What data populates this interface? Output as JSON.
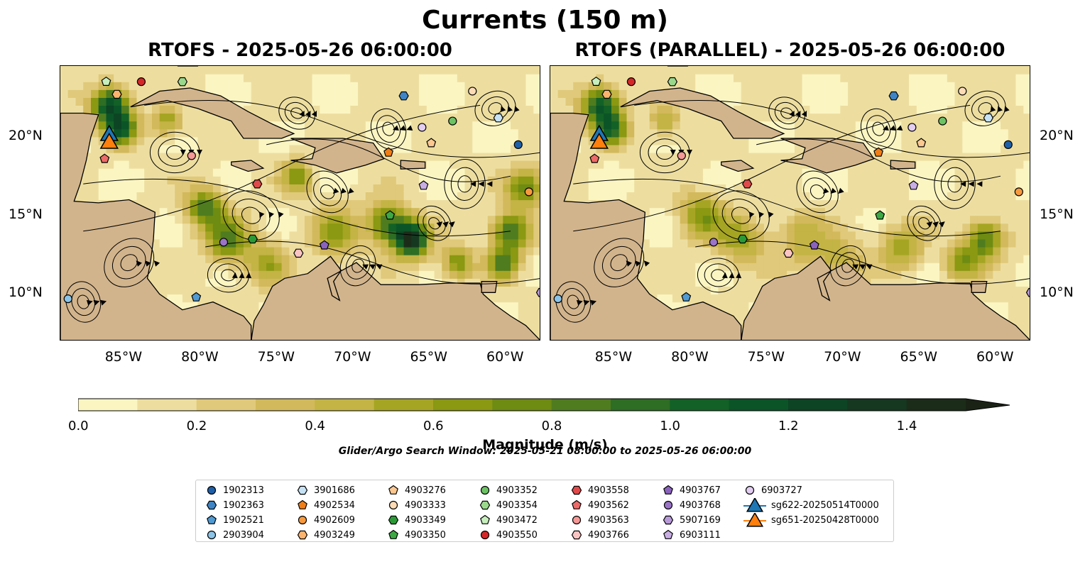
{
  "figure": {
    "title": "Currents (150 m)",
    "search_window": "Glider/Argo Search Window: 2025-05-21 08:00:00 to 2025-05-26 06:00:00"
  },
  "chart_data": [
    {
      "type": "heatmap",
      "title": "RTOFS - 2025-05-26 06:00:00",
      "x_ticks": [
        "85°W",
        "80°W",
        "75°W",
        "70°W",
        "65°W",
        "60°W"
      ],
      "y_ticks": [
        "20°N",
        "15°N",
        "10°N"
      ],
      "xlim": [
        -89.5,
        -58
      ],
      "ylim": [
        7,
        24.5
      ]
    },
    {
      "type": "heatmap",
      "title": "RTOFS (PARALLEL) - 2025-05-26 06:00:00",
      "x_ticks": [
        "85°W",
        "80°W",
        "75°W",
        "70°W",
        "65°W",
        "60°W"
      ],
      "y_ticks": [
        "20°N",
        "15°N",
        "10°N"
      ],
      "xlim": [
        -89.5,
        -58
      ],
      "ylim": [
        7,
        24.5
      ]
    }
  ],
  "colorbar": {
    "label": "Magnitude (m/s)",
    "ticks": [
      "0.0",
      "0.2",
      "0.4",
      "0.6",
      "0.8",
      "1.0",
      "1.2",
      "1.4"
    ],
    "range": [
      0,
      1.5
    ],
    "colors": [
      "#fbf5c2",
      "#eddea0",
      "#e0c97a",
      "#d2b95b",
      "#c3b445",
      "#a6a523",
      "#8a9812",
      "#6e8b12",
      "#4f7c1f",
      "#2e6d24",
      "#136126",
      "#0b5428",
      "#0c4424",
      "#163820",
      "#1b2d19",
      "#1a2216"
    ]
  },
  "legend": {
    "items": [
      {
        "label": "1902313",
        "shape": "circle",
        "color": "#1f5fa8"
      },
      {
        "label": "1902363",
        "shape": "hexagon",
        "color": "#3f84c4"
      },
      {
        "label": "1902521",
        "shape": "pentagon",
        "color": "#4f9ad3"
      },
      {
        "label": "2903904",
        "shape": "circle",
        "color": "#8cc4e8"
      },
      {
        "label": "3901686",
        "shape": "hexagon",
        "color": "#c6e2f4"
      },
      {
        "label": "4902534",
        "shape": "pentagon",
        "color": "#f07e16"
      },
      {
        "label": "4902609",
        "shape": "circle",
        "color": "#f79a3e"
      },
      {
        "label": "4903249",
        "shape": "hexagon",
        "color": "#fbb36e"
      },
      {
        "label": "4903276",
        "shape": "pentagon",
        "color": "#fcc891"
      },
      {
        "label": "4903333",
        "shape": "circle",
        "color": "#fddbb5"
      },
      {
        "label": "4903349",
        "shape": "hexagon",
        "color": "#2b9a36"
      },
      {
        "label": "4903350",
        "shape": "pentagon",
        "color": "#3da844"
      },
      {
        "label": "4903352",
        "shape": "circle",
        "color": "#6cc264"
      },
      {
        "label": "4903354",
        "shape": "hexagon",
        "color": "#9ad98c"
      },
      {
        "label": "4903472",
        "shape": "pentagon",
        "color": "#c7efbd"
      },
      {
        "label": "4903550",
        "shape": "circle",
        "color": "#d62728"
      },
      {
        "label": "4903558",
        "shape": "hexagon",
        "color": "#e0494a"
      },
      {
        "label": "4903562",
        "shape": "pentagon",
        "color": "#ec6a68"
      },
      {
        "label": "4903563",
        "shape": "circle",
        "color": "#f59896"
      },
      {
        "label": "4903766",
        "shape": "hexagon",
        "color": "#fac4c3"
      },
      {
        "label": "4903767",
        "shape": "pentagon",
        "color": "#8a63bd"
      },
      {
        "label": "4903768",
        "shape": "circle",
        "color": "#9b74c8"
      },
      {
        "label": "5907169",
        "shape": "hexagon",
        "color": "#b89ad8"
      },
      {
        "label": "6903111",
        "shape": "pentagon",
        "color": "#c8aee3"
      },
      {
        "label": "6903727",
        "shape": "circle",
        "color": "#e3cdf1"
      },
      {
        "label": "sg622-20250514T0000",
        "shape": "triangle",
        "color": "#1f77b4"
      },
      {
        "label": "sg651-20250428T0000",
        "shape": "triangle",
        "color": "#ff7f0e"
      }
    ]
  },
  "platforms": [
    {
      "label": "4903472",
      "lon": -86.5,
      "lat": 23.5
    },
    {
      "label": "4903550",
      "lon": -84.2,
      "lat": 23.5
    },
    {
      "label": "4903354",
      "lon": -81.5,
      "lat": 23.5
    },
    {
      "label": "4903249",
      "lon": -85.8,
      "lat": 22.7
    },
    {
      "label": "1902363",
      "lon": -67.0,
      "lat": 22.6
    },
    {
      "label": "4903333",
      "lon": -62.5,
      "lat": 22.9
    },
    {
      "label": "4903352",
      "lon": -63.8,
      "lat": 21.0
    },
    {
      "label": "3901686",
      "lon": -60.8,
      "lat": 21.2
    },
    {
      "label": "6903727",
      "lon": -65.8,
      "lat": 20.6
    },
    {
      "label": "4903276",
      "lon": -65.2,
      "lat": 19.6
    },
    {
      "label": "4902534",
      "lon": -68.0,
      "lat": 19.0
    },
    {
      "label": "1902313",
      "lon": -59.5,
      "lat": 19.5
    },
    {
      "label": "4903563",
      "lon": -80.9,
      "lat": 18.8
    },
    {
      "label": "4903562",
      "lon": -86.6,
      "lat": 18.6
    },
    {
      "label": "4903558",
      "lon": -76.6,
      "lat": 17.0
    },
    {
      "label": "6903111",
      "lon": -65.7,
      "lat": 16.9
    },
    {
      "label": "4902609",
      "lon": -58.8,
      "lat": 16.5
    },
    {
      "label": "4903350",
      "lon": -67.9,
      "lat": 15.0
    },
    {
      "label": "4903349",
      "lon": -76.9,
      "lat": 13.5
    },
    {
      "label": "4903768",
      "lon": -78.8,
      "lat": 13.3
    },
    {
      "label": "4903767",
      "lon": -72.2,
      "lat": 13.1
    },
    {
      "label": "4903766",
      "lon": -73.9,
      "lat": 12.6
    },
    {
      "label": "1902521",
      "lon": -80.6,
      "lat": 9.8
    },
    {
      "label": "2903904",
      "lon": -89.0,
      "lat": 9.7
    },
    {
      "label": "5907169",
      "lon": -58.0,
      "lat": 10.1
    }
  ],
  "gliders": [
    {
      "label": "sg622-20250514T0000",
      "lon": -86.3,
      "lat": 20.2
    },
    {
      "label": "sg651-20250428T0000",
      "lon": -86.3,
      "lat": 19.7
    }
  ]
}
